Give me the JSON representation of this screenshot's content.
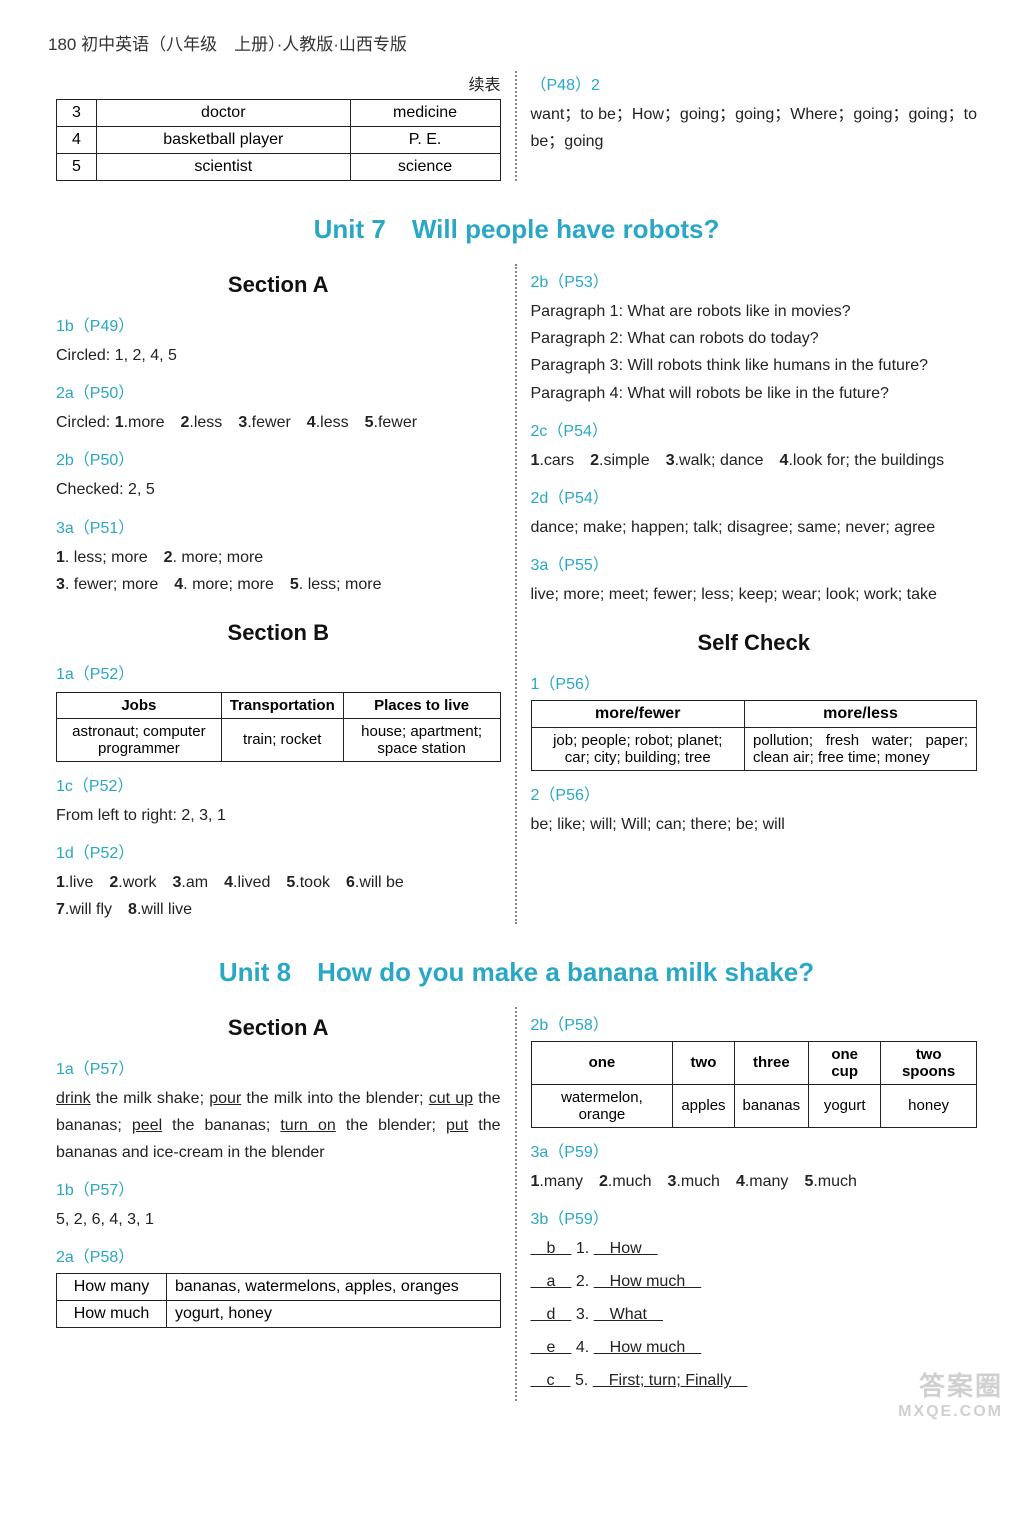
{
  "header": "180 初中英语（八年级　上册）·人教版·山西专版",
  "continuation_label": "续表",
  "top_table": {
    "rows": [
      [
        "3",
        "doctor",
        "medicine"
      ],
      [
        "4",
        "basketball player",
        "P. E."
      ],
      [
        "5",
        "scientist",
        "science"
      ]
    ]
  },
  "top_right": {
    "ref": "（P48）2",
    "line": "want；to be；How；going；going；Where；going；going；to be；going"
  },
  "unit7": {
    "title": "Unit 7　Will people have robots?",
    "sectionA": {
      "title": "Section A",
      "r1": "1b（P49）",
      "l1": "Circled: 1, 2, 4, 5",
      "r2": "2a（P50）",
      "l2_parts": [
        "Circled: ",
        "1",
        ".more　",
        "2",
        ".less　",
        "3",
        ".fewer　",
        "4",
        ".less　",
        "5",
        ".fewer"
      ],
      "r3": "2b（P50）",
      "l3": "Checked: 2, 5",
      "r4": "3a（P51）",
      "l4a_parts": [
        "1",
        ". less; more　",
        "2",
        ". more; more"
      ],
      "l4b_parts": [
        "3",
        ". fewer; more　",
        "4",
        ". more; more　",
        "5",
        ". less; more"
      ]
    },
    "sectionB": {
      "title": "Section B",
      "r1": "1a（P52）",
      "table": {
        "headers": [
          "Jobs",
          "Transportation",
          "Places to live"
        ],
        "row": [
          "astronaut; computer programmer",
          "train; rocket",
          "house; apartment; space station"
        ]
      },
      "r2": "1c（P52）",
      "l2": "From left to right: 2, 3, 1",
      "r3": "1d（P52）",
      "l3a_parts": [
        "1",
        ".live　",
        "2",
        ".work　",
        "3",
        ".am　",
        "4",
        ".lived　",
        "5",
        ".took　",
        "6",
        ".will be"
      ],
      "l3b_parts": [
        "7",
        ".will fly　",
        "8",
        ".will live"
      ],
      "r4": "2b（P53）",
      "p1": "Paragraph 1: What are robots like in movies?",
      "p2": "Paragraph 2: What can robots do today?",
      "p3": "Paragraph 3: Will robots think like humans in the future?",
      "p4": "Paragraph 4: What will robots be like in the future?",
      "r5": "2c（P54）",
      "l5_parts": [
        "1",
        ".cars　",
        "2",
        ".simple　",
        "3",
        ".walk; dance　",
        "4",
        ".look for; the buildings"
      ],
      "r6": "2d（P54）",
      "l6": "dance; make; happen; talk; disagree; same; never; agree",
      "r7": "3a（P55）",
      "l7": "live; more; meet; fewer; less; keep; wear; look; work; take"
    },
    "selfcheck": {
      "title": "Self Check",
      "r1": "1（P56）",
      "headers": [
        "more/fewer",
        "more/less"
      ],
      "cellL": "job; people; robot; planet; car; city; building; tree",
      "cellR": "pollution; fresh water; paper; clean air; free time; money",
      "r2": "2（P56）",
      "l2": "be; like; will; Will; can; there; be; will"
    }
  },
  "unit8": {
    "title": "Unit 8　How do you make a banana milk shake?",
    "sectionA": {
      "title": "Section A",
      "r1": "1a（P57）",
      "l1_seg": [
        {
          "t": "drink",
          "u": true
        },
        {
          "t": " the milk shake; "
        },
        {
          "t": "pour",
          "u": true
        },
        {
          "t": " the milk into the blender; "
        },
        {
          "t": "cut up",
          "u": true
        },
        {
          "t": " the bananas; "
        },
        {
          "t": "peel",
          "u": true
        },
        {
          "t": " the bananas; "
        },
        {
          "t": "turn on",
          "u": true
        },
        {
          "t": " the blender; "
        },
        {
          "t": "put",
          "u": true
        },
        {
          "t": " the bananas and ice-cream in the blender"
        }
      ],
      "r2": "1b（P57）",
      "l2": "5, 2, 6, 4, 3, 1",
      "r3": "2a（P58）",
      "tableHM": {
        "rows": [
          [
            "How many",
            "bananas, watermelons, apples, oranges"
          ],
          [
            "How much",
            "yogurt, honey"
          ]
        ]
      }
    },
    "right": {
      "r1": "2b（P58）",
      "tableOne": {
        "headers": [
          "one",
          "two",
          "three",
          "one cup",
          "two spoons"
        ],
        "row": [
          "watermelon, orange",
          "apples",
          "bananas",
          "yogurt",
          "honey"
        ]
      },
      "r2": "3a（P59）",
      "l2_parts": [
        "1",
        ".many　",
        "2",
        ".much　",
        "3",
        ".much　",
        "4",
        ".many　",
        "5",
        ".much"
      ],
      "r3": "3b（P59）",
      "ans": [
        {
          "letter": "b",
          "num": "1.",
          "word": "How"
        },
        {
          "letter": "a",
          "num": "2.",
          "word": "How much"
        },
        {
          "letter": "d",
          "num": "3.",
          "word": "What"
        },
        {
          "letter": "e",
          "num": "4.",
          "word": "How much"
        },
        {
          "letter": "c",
          "num": "5.",
          "word": "First; turn; Finally"
        }
      ]
    }
  },
  "watermark": {
    "l1": "答案圈",
    "l2": "MXQE.COM"
  }
}
